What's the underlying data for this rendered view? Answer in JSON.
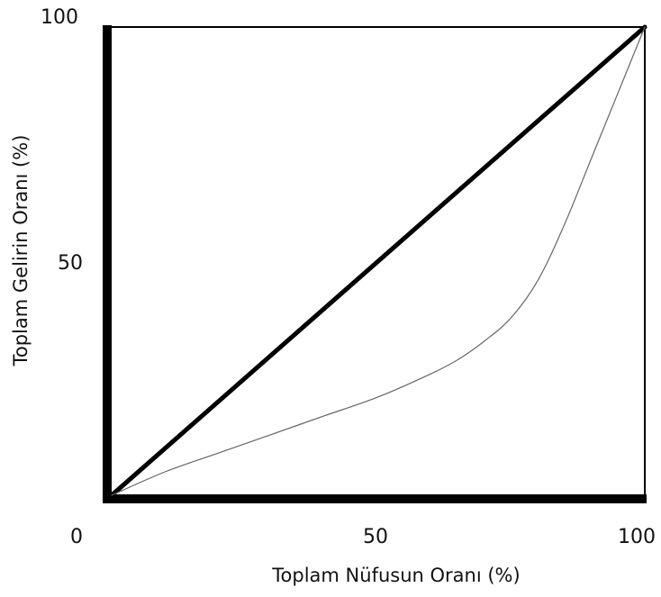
{
  "chart_data": {
    "type": "line",
    "xlabel": "Toplam Nüfusun Oranı  (%)",
    "ylabel": "Toplam Gelirin Oranı (%)",
    "xlim": [
      0,
      100
    ],
    "ylim": [
      0,
      100
    ],
    "x_ticks": [
      "0",
      "50",
      "100"
    ],
    "y_ticks": [
      "50",
      "100"
    ],
    "grid": false,
    "legend": false,
    "series": [
      {
        "x": [
          0,
          100
        ],
        "y": [
          0,
          100
        ],
        "color": "#000000",
        "style": "thick"
      },
      {
        "x": [
          0,
          10,
          20,
          30,
          40,
          50,
          60,
          65,
          70,
          75,
          80,
          85,
          90,
          95,
          100
        ],
        "y": [
          0,
          5,
          9,
          13,
          17,
          21,
          26,
          29,
          33,
          38,
          46,
          58,
          72,
          86,
          100
        ],
        "color": "#666666",
        "style": "thin"
      }
    ]
  }
}
